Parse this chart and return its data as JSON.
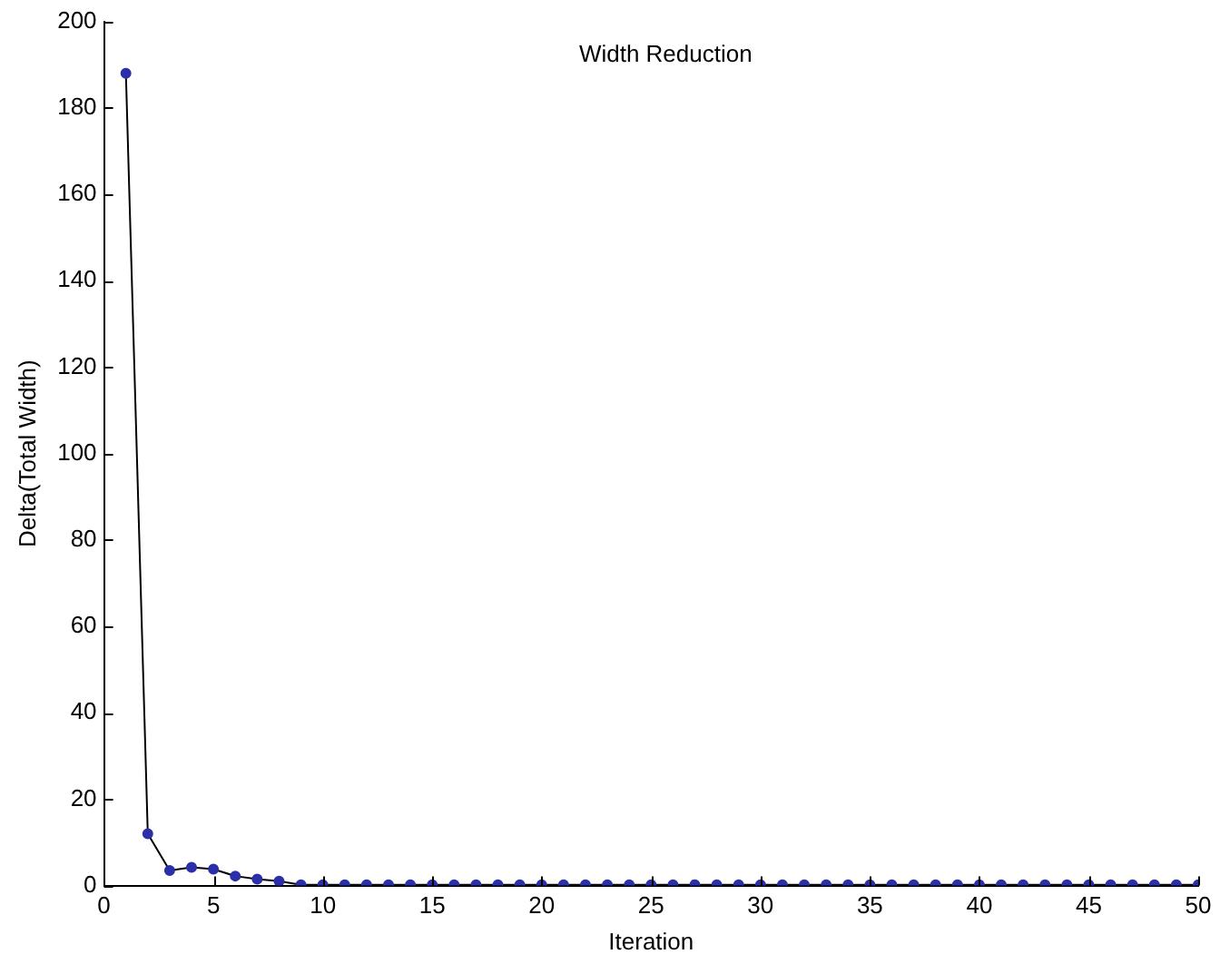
{
  "chart_data": {
    "type": "line",
    "title": "Width Reduction",
    "xlabel": "Iteration",
    "ylabel": "Delta(Total Width)",
    "x": [
      1,
      2,
      3,
      4,
      5,
      6,
      7,
      8,
      9,
      10,
      11,
      12,
      13,
      14,
      15,
      16,
      17,
      18,
      19,
      20,
      21,
      22,
      23,
      24,
      25,
      26,
      27,
      28,
      29,
      30,
      31,
      32,
      33,
      34,
      35,
      36,
      37,
      38,
      39,
      40,
      41,
      42,
      43,
      44,
      45,
      46,
      47,
      48,
      49,
      50
    ],
    "series": [
      {
        "color": "#2b2fa8",
        "values": [
          188,
          12,
          3.5,
          4.2,
          3.8,
          2.2,
          1.5,
          1,
          0.2,
          0.2,
          0.2,
          0.2,
          0.2,
          0.2,
          0.2,
          0.2,
          0.2,
          0.2,
          0.2,
          0.2,
          0.2,
          0.2,
          0.2,
          0.2,
          0.2,
          0.2,
          0.2,
          0.2,
          0.2,
          0.2,
          0.2,
          0.2,
          0.2,
          0.2,
          0.2,
          0.2,
          0.2,
          0.2,
          0.2,
          0.2,
          0.2,
          0.2,
          0.2,
          0.2,
          0.2,
          0.2,
          0.2,
          0.2,
          0.2,
          0.2
        ]
      }
    ],
    "xlim": [
      0,
      50
    ],
    "xticks": [
      0,
      5,
      10,
      15,
      20,
      25,
      30,
      35,
      40,
      45,
      50
    ],
    "ylim": [
      0,
      200
    ],
    "yticks": [
      0,
      20,
      40,
      60,
      80,
      100,
      120,
      140,
      160,
      180,
      200
    ],
    "grid": false,
    "legend": false,
    "marker": "circle",
    "line_style": "solid"
  }
}
